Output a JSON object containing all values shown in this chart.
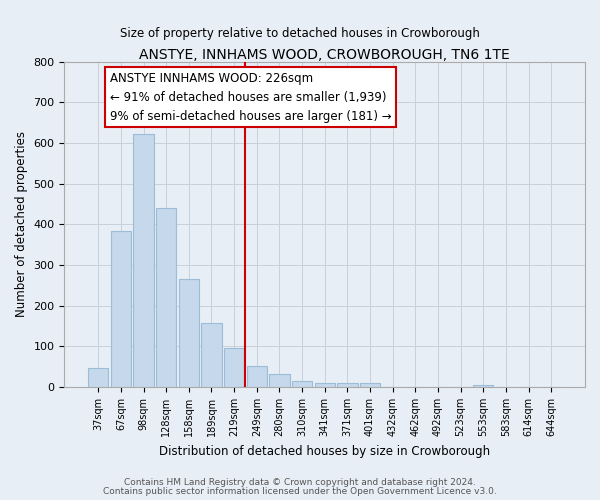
{
  "title": "ANSTYE, INNHAMS WOOD, CROWBOROUGH, TN6 1TE",
  "subtitle": "Size of property relative to detached houses in Crowborough",
  "xlabel": "Distribution of detached houses by size in Crowborough",
  "ylabel": "Number of detached properties",
  "bar_color": "#c5d8ec",
  "bar_edge_color": "#9dbcd8",
  "categories": [
    "37sqm",
    "67sqm",
    "98sqm",
    "128sqm",
    "158sqm",
    "189sqm",
    "219sqm",
    "249sqm",
    "280sqm",
    "310sqm",
    "341sqm",
    "371sqm",
    "401sqm",
    "432sqm",
    "462sqm",
    "492sqm",
    "523sqm",
    "553sqm",
    "583sqm",
    "614sqm",
    "644sqm"
  ],
  "values": [
    47,
    383,
    621,
    440,
    265,
    157,
    97,
    51,
    31,
    15,
    11,
    11,
    11,
    0,
    0,
    0,
    0,
    5,
    0,
    0,
    0
  ],
  "ylim": [
    0,
    800
  ],
  "yticks": [
    0,
    100,
    200,
    300,
    400,
    500,
    600,
    700,
    800
  ],
  "vline_x": 6.5,
  "vline_color": "#cc0000",
  "annotation_line1": "ANSTYE INNHAMS WOOD: 226sqm",
  "annotation_line2": "← 91% of detached houses are smaller (1,939)",
  "annotation_line3": "9% of semi-detached houses are larger (181) →",
  "annotation_box_color": "#ffffff",
  "annotation_box_edge": "#cc0000",
  "footer1": "Contains HM Land Registry data © Crown copyright and database right 2024.",
  "footer2": "Contains public sector information licensed under the Open Government Licence v3.0.",
  "background_color": "#e8eef5",
  "plot_background": "#e8eef5",
  "grid_color": "#c8d0da"
}
